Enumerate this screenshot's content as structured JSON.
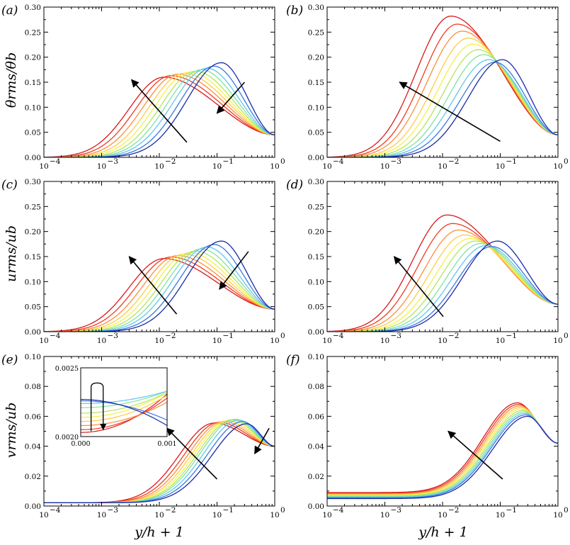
{
  "chart_data": [
    {
      "type": "line",
      "panel": "(a)",
      "ylabel": "θrms/θb",
      "xscale": "log",
      "xlim": [
        0.0001,
        1
      ],
      "ylim": [
        0,
        0.3
      ],
      "x_ticks": [
        "10",
        "10",
        "10",
        "10",
        "10"
      ],
      "x_tick_exp": [
        "−4",
        "−3",
        "−2",
        "−1",
        "0"
      ],
      "y_ticks": [
        "0.00",
        "0.05",
        "0.10",
        "0.15",
        "0.20",
        "0.25",
        "0.30"
      ],
      "base": 0.0,
      "tail": 0.045,
      "n_curves": 10,
      "peak_x": [
        0.012,
        0.016,
        0.021,
        0.027,
        0.034,
        0.043,
        0.054,
        0.068,
        0.09,
        0.12
      ],
      "peak_y": [
        0.16,
        0.163,
        0.166,
        0.168,
        0.17,
        0.172,
        0.175,
        0.178,
        0.182,
        0.189
      ],
      "arrows": [
        {
          "from": [
            0.03,
            0.03
          ],
          "to": [
            0.0033,
            0.155
          ]
        },
        {
          "from": [
            0.3,
            0.15
          ],
          "to": [
            0.1,
            0.088
          ]
        }
      ]
    },
    {
      "type": "line",
      "panel": "(b)",
      "ylabel": "",
      "xscale": "log",
      "xlim": [
        0.0001,
        1
      ],
      "ylim": [
        0,
        0.3
      ],
      "x_ticks": [
        "10",
        "10",
        "10",
        "10",
        "10"
      ],
      "x_tick_exp": [
        "−4",
        "−3",
        "−2",
        "−1",
        "0"
      ],
      "y_ticks": [
        "0.00",
        "0.05",
        "0.10",
        "0.15",
        "0.20",
        "0.25",
        "0.30"
      ],
      "base": 0.0,
      "tail": 0.045,
      "n_curves": 10,
      "peak_x": [
        0.014,
        0.018,
        0.022,
        0.028,
        0.034,
        0.042,
        0.052,
        0.064,
        0.082,
        0.11
      ],
      "peak_y": [
        0.282,
        0.266,
        0.252,
        0.238,
        0.226,
        0.215,
        0.205,
        0.195,
        0.19,
        0.195
      ],
      "arrows": [
        {
          "from": [
            0.1,
            0.032
          ],
          "to": [
            0.0018,
            0.15
          ]
        }
      ]
    },
    {
      "type": "line",
      "panel": "(c)",
      "ylabel": "urms/ub",
      "xscale": "log",
      "xlim": [
        0.0001,
        1
      ],
      "ylim": [
        0,
        0.3
      ],
      "x_ticks": [
        "10",
        "10",
        "10",
        "10",
        "10"
      ],
      "x_tick_exp": [
        "−4",
        "−3",
        "−2",
        "−1",
        "0"
      ],
      "y_ticks": [
        "0.00",
        "0.05",
        "0.10",
        "0.15",
        "0.20",
        "0.25",
        "0.30"
      ],
      "base": 0.0,
      "tail": 0.045,
      "n_curves": 10,
      "peak_x": [
        0.012,
        0.016,
        0.021,
        0.027,
        0.034,
        0.043,
        0.054,
        0.068,
        0.09,
        0.12
      ],
      "peak_y": [
        0.146,
        0.149,
        0.152,
        0.155,
        0.158,
        0.161,
        0.165,
        0.169,
        0.174,
        0.181
      ],
      "arrows": [
        {
          "from": [
            0.02,
            0.035
          ],
          "to": [
            0.003,
            0.15
          ]
        },
        {
          "from": [
            0.35,
            0.16
          ],
          "to": [
            0.11,
            0.085
          ]
        }
      ]
    },
    {
      "type": "line",
      "panel": "(d)",
      "ylabel": "",
      "xscale": "log",
      "xlim": [
        0.0001,
        1
      ],
      "ylim": [
        0,
        0.3
      ],
      "x_ticks": [
        "10",
        "10",
        "10",
        "10",
        "10"
      ],
      "x_tick_exp": [
        "−4",
        "−3",
        "−2",
        "−1",
        "0"
      ],
      "y_ticks": [
        "0.00",
        "0.05",
        "0.10",
        "0.15",
        "0.20",
        "0.25",
        "0.30"
      ],
      "base": 0.0,
      "tail": 0.055,
      "n_curves": 10,
      "peak_x": [
        0.012,
        0.015,
        0.019,
        0.024,
        0.03,
        0.037,
        0.046,
        0.057,
        0.072,
        0.09
      ],
      "peak_y": [
        0.233,
        0.216,
        0.203,
        0.193,
        0.186,
        0.181,
        0.176,
        0.172,
        0.17,
        0.181
      ],
      "arrows": [
        {
          "from": [
            0.0103,
            0.03
          ],
          "to": [
            0.00145,
            0.15
          ]
        }
      ]
    },
    {
      "type": "line",
      "panel": "(e)",
      "ylabel": "vrms/ub",
      "xlabel": "y/h + 1",
      "xscale": "log",
      "xlim": [
        0.0001,
        1
      ],
      "ylim": [
        0,
        0.1
      ],
      "x_ticks": [
        "10",
        "10",
        "10",
        "10",
        "10"
      ],
      "x_tick_exp": [
        "−4",
        "−3",
        "−2",
        "−1",
        "0"
      ],
      "y_ticks": [
        "0.00",
        "0.02",
        "0.04",
        "0.06",
        "0.08",
        "0.10"
      ],
      "base": 0.0022,
      "tail": 0.04,
      "n_curves": 10,
      "peak_x": [
        0.09,
        0.11,
        0.13,
        0.15,
        0.17,
        0.19,
        0.21,
        0.24,
        0.28,
        0.33
      ],
      "peak_y": [
        0.0555,
        0.056,
        0.0565,
        0.057,
        0.0575,
        0.0578,
        0.058,
        0.0575,
        0.0565,
        0.055
      ],
      "arrows": [
        {
          "from": [
            0.1,
            0.018
          ],
          "to": [
            0.0135,
            0.052
          ]
        },
        {
          "from": [
            0.8,
            0.052
          ],
          "to": [
            0.45,
            0.035
          ]
        }
      ],
      "inset": {
        "xlim": [
          0.0,
          0.001
        ],
        "ylim": [
          0.002,
          0.0025
        ],
        "x_ticks": [
          "0.000",
          "0.001"
        ],
        "y_ticks": [
          "0.0020",
          "0.0025"
        ],
        "start_y": [
          0.00203,
          0.00205,
          0.00208,
          0.00211,
          0.00214,
          0.00217,
          0.00221,
          0.00224,
          0.00226,
          0.00227
        ],
        "end_y": [
          0.00231,
          0.00228,
          0.00225,
          0.0023,
          0.00232,
          0.00232,
          0.00233,
          0.00233,
          0.00212,
          0.00208
        ]
      }
    },
    {
      "type": "line",
      "panel": "(f)",
      "ylabel": "",
      "xlabel": "y/h + 1",
      "xscale": "log",
      "xlim": [
        0.0001,
        1
      ],
      "ylim": [
        0,
        0.1
      ],
      "x_ticks": [
        "10",
        "10",
        "10",
        "10",
        "10"
      ],
      "x_tick_exp": [
        "−4",
        "−3",
        "−2",
        "−1",
        "0"
      ],
      "y_ticks": [
        "0.00",
        "0.02",
        "0.04",
        "0.06",
        "0.08",
        "0.10"
      ],
      "base": 0.009,
      "base_end": 0.005,
      "tail": 0.042,
      "n_curves": 10,
      "peak_x": [
        0.2,
        0.21,
        0.22,
        0.23,
        0.24,
        0.25,
        0.26,
        0.27,
        0.28,
        0.3
      ],
      "peak_y": [
        0.069,
        0.068,
        0.067,
        0.066,
        0.065,
        0.064,
        0.063,
        0.062,
        0.061,
        0.06
      ],
      "arrows": [
        {
          "from": [
            0.11,
            0.018
          ],
          "to": [
            0.0125,
            0.05
          ]
        }
      ]
    }
  ],
  "colors": [
    "#d7191c",
    "#f03b20",
    "#fd8d3c",
    "#fecb44",
    "#f5ee48",
    "#b5e55a",
    "#7fe3a3",
    "#62c7ec",
    "#3b78e0",
    "#1b2aa8"
  ]
}
